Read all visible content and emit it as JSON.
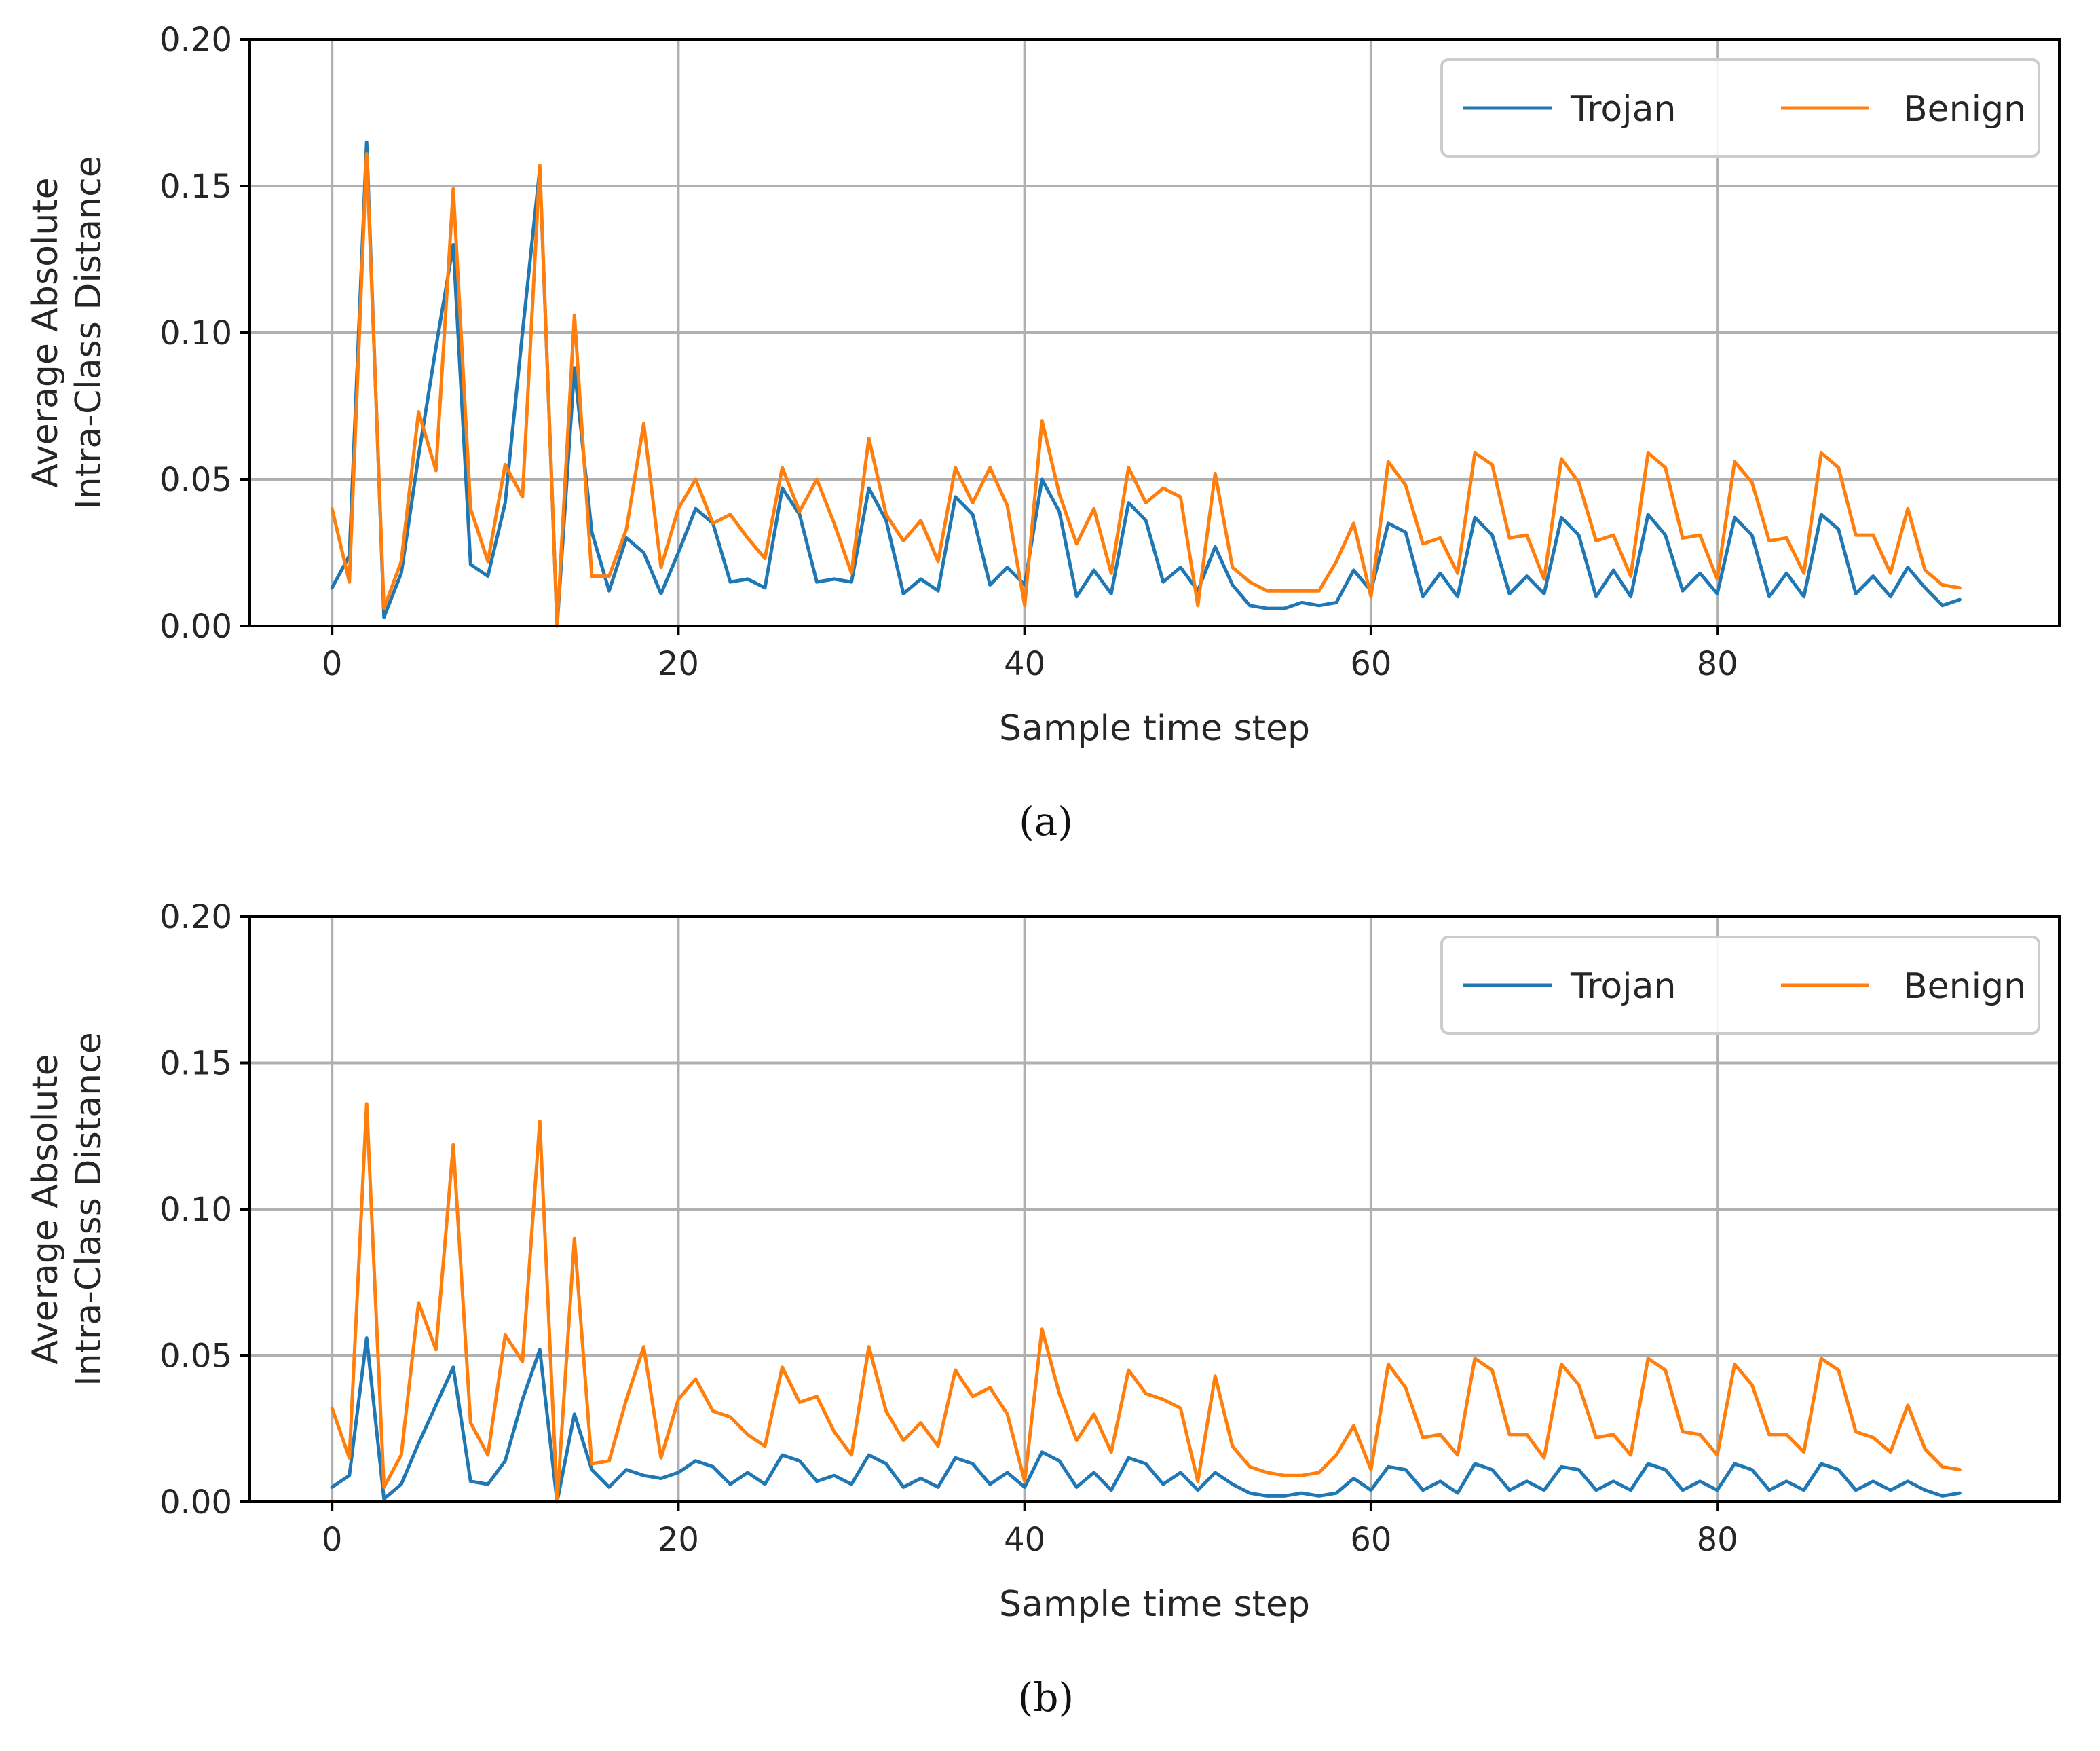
{
  "chart_data": [
    {
      "type": "line",
      "panel": "(a)",
      "xlabel": "Sample time step",
      "ylabel_lines": [
        "Average Absolute",
        "Intra-Class Distance"
      ],
      "xlim": [
        -4.75,
        99.75
      ],
      "ylim": [
        0,
        0.2
      ],
      "xticks": [
        0,
        20,
        40,
        60,
        80
      ],
      "xtick_labels": [
        "0",
        "20",
        "40",
        "60",
        "80"
      ],
      "yticks": [
        0,
        0.05,
        0.1,
        0.15,
        0.2
      ],
      "ytick_labels": [
        "0.00",
        "0.05",
        "0.10",
        "0.15",
        "0.20"
      ],
      "grid": true,
      "legend_position": "top-right",
      "series": [
        {
          "name": "Trojan",
          "color": "#1f77b4",
          "values": [
            0.013,
            0.024,
            0.165,
            0.003,
            0.018,
            0.058,
            0.095,
            0.13,
            0.021,
            0.017,
            0.042,
            0.1,
            0.156,
            0.0,
            0.088,
            0.032,
            0.012,
            0.03,
            0.025,
            0.011,
            0.025,
            0.04,
            0.035,
            0.015,
            0.016,
            0.013,
            0.047,
            0.038,
            0.015,
            0.016,
            0.015,
            0.047,
            0.036,
            0.011,
            0.016,
            0.012,
            0.044,
            0.038,
            0.014,
            0.02,
            0.014,
            0.05,
            0.039,
            0.01,
            0.019,
            0.011,
            0.042,
            0.036,
            0.015,
            0.02,
            0.012,
            0.027,
            0.014,
            0.007,
            0.006,
            0.006,
            0.008,
            0.007,
            0.008,
            0.019,
            0.012,
            0.035,
            0.032,
            0.01,
            0.018,
            0.01,
            0.037,
            0.031,
            0.011,
            0.017,
            0.011,
            0.037,
            0.031,
            0.01,
            0.019,
            0.01,
            0.038,
            0.031,
            0.012,
            0.018,
            0.011,
            0.037,
            0.031,
            0.01,
            0.018,
            0.01,
            0.038,
            0.033,
            0.011,
            0.017,
            0.01,
            0.02,
            0.013,
            0.007,
            0.009
          ]
        },
        {
          "name": "Benign",
          "color": "#ff7f0e",
          "values": [
            0.04,
            0.015,
            0.161,
            0.006,
            0.022,
            0.073,
            0.053,
            0.149,
            0.04,
            0.022,
            0.055,
            0.044,
            0.157,
            0.0,
            0.106,
            0.017,
            0.017,
            0.033,
            0.069,
            0.02,
            0.04,
            0.05,
            0.035,
            0.038,
            0.03,
            0.023,
            0.054,
            0.039,
            0.05,
            0.035,
            0.018,
            0.064,
            0.038,
            0.029,
            0.036,
            0.022,
            0.054,
            0.042,
            0.054,
            0.041,
            0.007,
            0.07,
            0.045,
            0.028,
            0.04,
            0.018,
            0.054,
            0.042,
            0.047,
            0.044,
            0.007,
            0.052,
            0.02,
            0.015,
            0.012,
            0.012,
            0.012,
            0.012,
            0.022,
            0.035,
            0.01,
            0.056,
            0.048,
            0.028,
            0.03,
            0.018,
            0.059,
            0.055,
            0.03,
            0.031,
            0.016,
            0.057,
            0.049,
            0.029,
            0.031,
            0.017,
            0.059,
            0.054,
            0.03,
            0.031,
            0.016,
            0.056,
            0.049,
            0.029,
            0.03,
            0.018,
            0.059,
            0.054,
            0.031,
            0.031,
            0.018,
            0.04,
            0.019,
            0.014,
            0.013
          ]
        }
      ]
    },
    {
      "type": "line",
      "panel": "(b)",
      "xlabel": "Sample time step",
      "ylabel_lines": [
        "Average Absolute",
        "Intra-Class Distance"
      ],
      "xlim": [
        -4.75,
        99.75
      ],
      "ylim": [
        0,
        0.2
      ],
      "xticks": [
        0,
        20,
        40,
        60,
        80
      ],
      "xtick_labels": [
        "0",
        "20",
        "40",
        "60",
        "80"
      ],
      "yticks": [
        0,
        0.05,
        0.1,
        0.15,
        0.2
      ],
      "ytick_labels": [
        "0.00",
        "0.05",
        "0.10",
        "0.15",
        "0.20"
      ],
      "grid": true,
      "legend_position": "top-right",
      "series": [
        {
          "name": "Trojan",
          "color": "#1f77b4",
          "values": [
            0.005,
            0.009,
            0.056,
            0.001,
            0.006,
            0.02,
            0.033,
            0.046,
            0.007,
            0.006,
            0.014,
            0.035,
            0.052,
            0.0,
            0.03,
            0.011,
            0.005,
            0.011,
            0.009,
            0.008,
            0.01,
            0.014,
            0.012,
            0.006,
            0.01,
            0.006,
            0.016,
            0.014,
            0.007,
            0.009,
            0.006,
            0.016,
            0.013,
            0.005,
            0.008,
            0.005,
            0.015,
            0.013,
            0.006,
            0.01,
            0.005,
            0.017,
            0.014,
            0.005,
            0.01,
            0.004,
            0.015,
            0.013,
            0.006,
            0.01,
            0.004,
            0.01,
            0.006,
            0.003,
            0.002,
            0.002,
            0.003,
            0.002,
            0.003,
            0.008,
            0.004,
            0.012,
            0.011,
            0.004,
            0.007,
            0.003,
            0.013,
            0.011,
            0.004,
            0.007,
            0.004,
            0.012,
            0.011,
            0.004,
            0.007,
            0.004,
            0.013,
            0.011,
            0.004,
            0.007,
            0.004,
            0.013,
            0.011,
            0.004,
            0.007,
            0.004,
            0.013,
            0.011,
            0.004,
            0.007,
            0.004,
            0.007,
            0.004,
            0.002,
            0.003
          ]
        },
        {
          "name": "Benign",
          "color": "#ff7f0e",
          "values": [
            0.032,
            0.015,
            0.136,
            0.005,
            0.016,
            0.068,
            0.052,
            0.122,
            0.027,
            0.016,
            0.057,
            0.048,
            0.13,
            0.0,
            0.09,
            0.013,
            0.014,
            0.035,
            0.053,
            0.015,
            0.035,
            0.042,
            0.031,
            0.029,
            0.023,
            0.019,
            0.046,
            0.034,
            0.036,
            0.024,
            0.016,
            0.053,
            0.031,
            0.021,
            0.027,
            0.019,
            0.045,
            0.036,
            0.039,
            0.03,
            0.007,
            0.059,
            0.037,
            0.021,
            0.03,
            0.017,
            0.045,
            0.037,
            0.035,
            0.032,
            0.007,
            0.043,
            0.019,
            0.012,
            0.01,
            0.009,
            0.009,
            0.01,
            0.016,
            0.026,
            0.011,
            0.047,
            0.039,
            0.022,
            0.023,
            0.016,
            0.049,
            0.045,
            0.023,
            0.023,
            0.015,
            0.047,
            0.04,
            0.022,
            0.023,
            0.016,
            0.049,
            0.045,
            0.024,
            0.023,
            0.016,
            0.047,
            0.04,
            0.023,
            0.023,
            0.017,
            0.049,
            0.045,
            0.024,
            0.022,
            0.017,
            0.033,
            0.018,
            0.012,
            0.011
          ]
        }
      ]
    }
  ]
}
